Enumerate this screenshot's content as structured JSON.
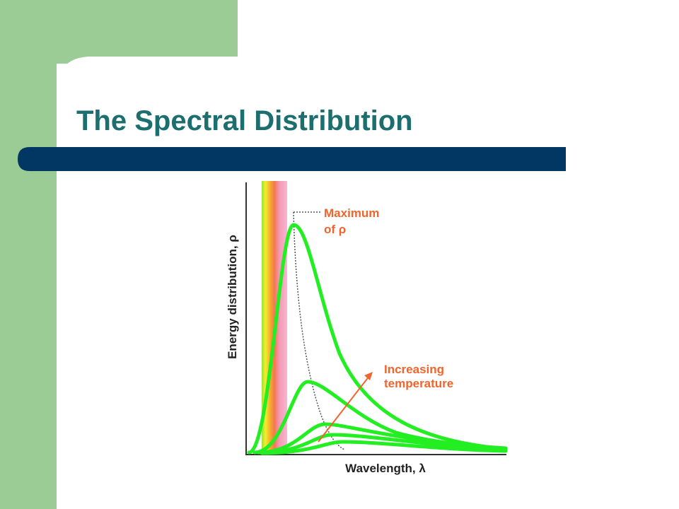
{
  "slide": {
    "title": "The Spectral Distribution"
  },
  "figure": {
    "y_label": "Energy distribution, ρ",
    "x_label": "Wavelength, λ",
    "maximum_label": [
      "Maximum",
      "of ρ"
    ],
    "temperature_label": [
      "Increasing",
      "temperature"
    ]
  }
}
